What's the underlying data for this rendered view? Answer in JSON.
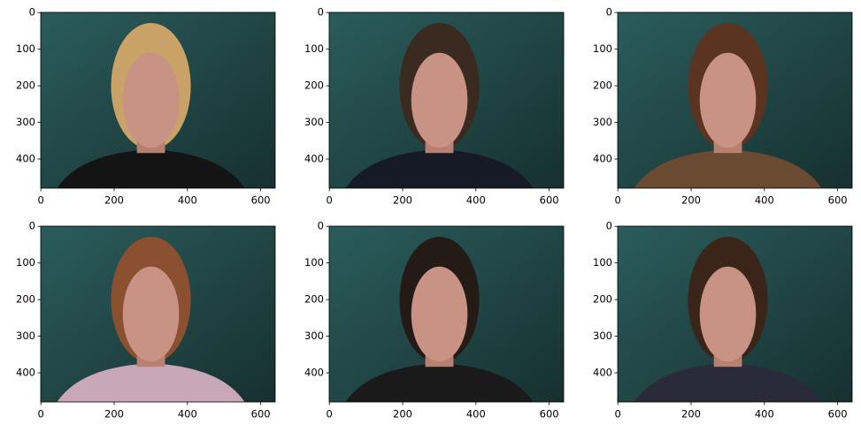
{
  "chart_data": [
    {
      "type": "image",
      "xlim": [
        -0.5,
        639.5
      ],
      "ylim": [
        479.5,
        -0.5
      ],
      "xticks": [
        0,
        200,
        400,
        600
      ],
      "yticks": [
        0,
        100,
        200,
        300,
        400
      ]
    },
    {
      "type": "image",
      "xlim": [
        -0.5,
        639.5
      ],
      "ylim": [
        479.5,
        -0.5
      ],
      "xticks": [
        0,
        200,
        400,
        600
      ],
      "yticks": [
        0,
        100,
        200,
        300,
        400
      ]
    },
    {
      "type": "image",
      "xlim": [
        -0.5,
        639.5
      ],
      "ylim": [
        479.5,
        -0.5
      ],
      "xticks": [
        0,
        200,
        400,
        600
      ],
      "yticks": [
        0,
        100,
        200,
        300,
        400
      ]
    },
    {
      "type": "image",
      "xlim": [
        -0.5,
        639.5
      ],
      "ylim": [
        479.5,
        -0.5
      ],
      "xticks": [
        0,
        200,
        400,
        600
      ],
      "yticks": [
        0,
        100,
        200,
        300,
        400
      ]
    },
    {
      "type": "image",
      "xlim": [
        -0.5,
        639.5
      ],
      "ylim": [
        479.5,
        -0.5
      ],
      "xticks": [
        0,
        200,
        400,
        600
      ],
      "yticks": [
        0,
        100,
        200,
        300,
        400
      ]
    },
    {
      "type": "image",
      "xlim": [
        -0.5,
        639.5
      ],
      "ylim": [
        479.5,
        -0.5
      ],
      "xticks": [
        0,
        200,
        400,
        600
      ],
      "yticks": [
        0,
        100,
        200,
        300,
        400
      ]
    }
  ]
}
